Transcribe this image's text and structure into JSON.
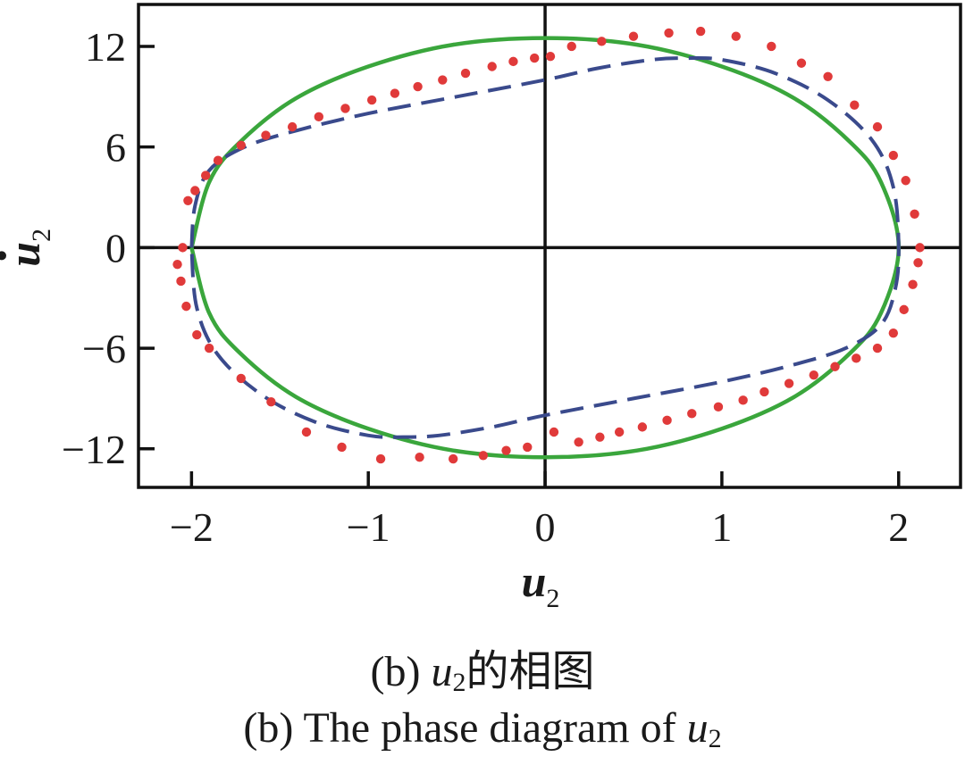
{
  "chart_data": {
    "type": "line",
    "xlabel": "u",
    "xlabel_sub": "2",
    "ylabel": "u",
    "ylabel_sub": "2",
    "ylabel_dot": true,
    "xlim": [
      -2.3,
      2.35
    ],
    "ylim": [
      -14.3,
      14.5
    ],
    "x_ticks": [
      -2,
      -1,
      0,
      1,
      2
    ],
    "x_tick_labels": [
      "−2",
      "−1",
      "0",
      "1",
      "2"
    ],
    "y_ticks": [
      12,
      6,
      0,
      -6,
      -12
    ],
    "y_tick_labels": [
      "12",
      "6",
      "0",
      "−6",
      "−12"
    ],
    "zero_lines": true,
    "grid": false,
    "series": [
      {
        "style": "solid",
        "color": "#3aa63c",
        "x": [
          -2.0,
          -1.9,
          -1.73,
          -1.41,
          -1.0,
          -0.52,
          0.0,
          0.52,
          1.0,
          1.41,
          1.73,
          1.9,
          2.0,
          1.9,
          1.73,
          1.41,
          1.0,
          0.52,
          0.0,
          -0.52,
          -1.0,
          -1.41,
          -1.73,
          -1.9,
          -2.0
        ],
        "y": [
          0.0,
          3.9,
          6.25,
          8.9,
          10.8,
          12.1,
          12.5,
          12.1,
          10.8,
          8.9,
          6.25,
          3.9,
          0.0,
          -3.9,
          -6.25,
          -8.9,
          -10.8,
          -12.1,
          -12.5,
          -12.1,
          -10.8,
          -8.9,
          -6.25,
          -3.9,
          0.0
        ]
      },
      {
        "style": "dashed",
        "color": "#3a4a8c",
        "x": [
          -2.0,
          -1.98,
          -1.9,
          -1.7,
          -1.4,
          -1.0,
          -0.5,
          0.0,
          0.3,
          0.6,
          0.8,
          1.0,
          1.3,
          1.6,
          1.85,
          1.97,
          2.0,
          1.98,
          1.9,
          1.7,
          1.4,
          1.0,
          0.5,
          0.0,
          -0.3,
          -0.6,
          -0.8,
          -1.0,
          -1.3,
          -1.6,
          -1.85,
          -1.97,
          -2.0
        ],
        "y": [
          0.0,
          2.5,
          4.6,
          6.0,
          7.0,
          8.0,
          9.0,
          10.0,
          10.7,
          11.2,
          11.3,
          11.2,
          10.4,
          8.8,
          6.4,
          3.6,
          0.0,
          -2.5,
          -4.6,
          -6.0,
          -7.0,
          -8.0,
          -9.0,
          -10.0,
          -10.7,
          -11.2,
          -11.3,
          -11.2,
          -10.4,
          -8.8,
          -6.4,
          -3.6,
          0.0
        ]
      },
      {
        "style": "dotted",
        "color": "#e03a3a",
        "x": [
          -2.05,
          -2.02,
          -1.98,
          -1.92,
          -1.85,
          -1.72,
          -1.58,
          -1.43,
          -1.28,
          -1.13,
          -0.98,
          -0.85,
          -0.72,
          -0.58,
          -0.45,
          -0.3,
          -0.18,
          -0.06,
          0.03,
          0.15,
          0.32,
          0.5,
          0.7,
          0.88,
          1.08,
          1.28,
          1.45,
          1.6,
          1.75,
          1.88,
          1.97,
          2.04,
          2.09,
          2.12,
          2.11,
          2.08,
          2.03,
          1.97,
          1.88,
          1.76,
          1.64,
          1.52,
          1.38,
          1.24,
          1.12,
          0.98,
          0.83,
          0.69,
          0.55,
          0.42,
          0.31,
          0.19,
          0.05,
          -0.1,
          -0.22,
          -0.35,
          -0.52,
          -0.71,
          -0.93,
          -1.15,
          -1.35,
          -1.55,
          -1.72,
          -1.9,
          -1.97,
          -2.03,
          -2.06,
          -2.08
        ],
        "y": [
          0.0,
          2.8,
          3.4,
          4.3,
          5.2,
          6.1,
          6.7,
          7.2,
          7.8,
          8.3,
          8.8,
          9.2,
          9.6,
          10.0,
          10.4,
          10.8,
          11.1,
          11.3,
          11.4,
          12.0,
          12.3,
          12.6,
          12.8,
          12.9,
          12.6,
          12.0,
          11.0,
          10.2,
          8.5,
          7.2,
          5.5,
          4.0,
          2.0,
          0.0,
          -0.9,
          -2.2,
          -3.7,
          -5.1,
          -6.0,
          -6.6,
          -7.1,
          -7.6,
          -8.1,
          -8.6,
          -9.1,
          -9.5,
          -9.9,
          -10.3,
          -10.7,
          -11.0,
          -11.3,
          -11.6,
          -11.0,
          -11.9,
          -12.1,
          -12.4,
          -12.6,
          -12.5,
          -12.6,
          -11.9,
          -11.0,
          -9.2,
          -7.8,
          -6.0,
          -5.2,
          -3.5,
          -2.0,
          -1.0
        ]
      }
    ]
  },
  "caption": {
    "line1_prefix": "(b) ",
    "line1_var": "u",
    "line1_sub": "2",
    "line1_suffix": "的相图",
    "line2_prefix": "(b) The phase diagram of ",
    "line2_var": "u",
    "line2_sub": "2"
  }
}
